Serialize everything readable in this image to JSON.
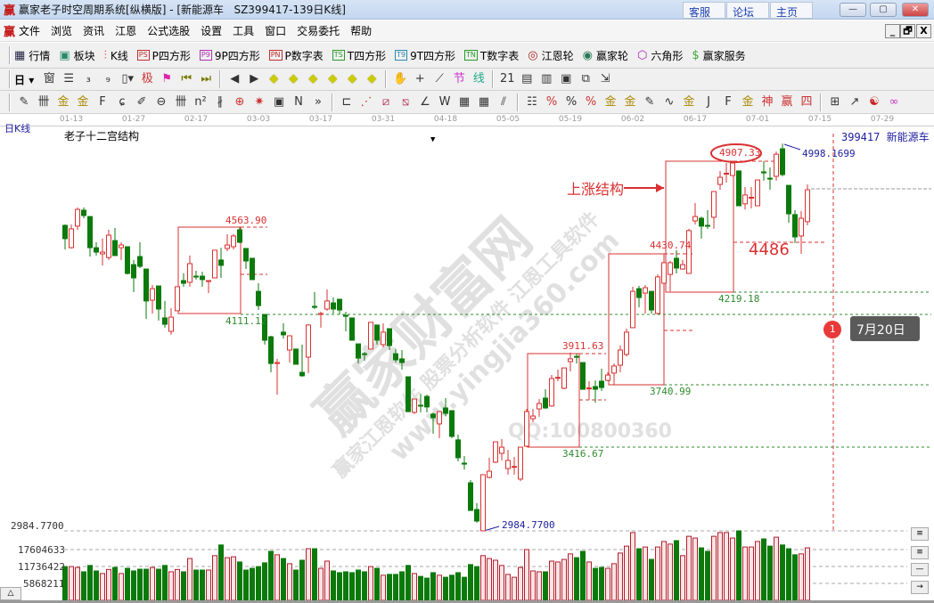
{
  "window": {
    "app_icon": "赢",
    "title": "赢家老子时空周期系统[纵横版] - [新能源车   SZ399417-139日K线]",
    "links": [
      "客服",
      "论坛",
      "主页"
    ],
    "controls": [
      "—",
      "▢",
      "✕"
    ]
  },
  "menu": {
    "app_icon": "赢",
    "items": [
      "文件",
      "浏览",
      "资讯",
      "江恩",
      "公式选股",
      "设置",
      "工具",
      "窗口",
      "交易委托",
      "帮助"
    ],
    "mdi_controls": [
      "_",
      "🗗",
      "X"
    ]
  },
  "toolbar1": [
    {
      "label": "行情",
      "icon": "table"
    },
    {
      "label": "板块",
      "icon": "blocks"
    },
    {
      "label": "K线",
      "icon": "kline"
    },
    {
      "label": "P四方形",
      "badge": "PS",
      "color": "#c03030"
    },
    {
      "label": "9P四方形",
      "badge": "P9",
      "color": "#b030b0"
    },
    {
      "label": "P数字表",
      "badge": "PN",
      "color": "#c03030"
    },
    {
      "label": "T四方形",
      "badge": "TS",
      "color": "#2a9a2a"
    },
    {
      "label": "9T四方形",
      "badge": "T9",
      "color": "#2a8ab0"
    },
    {
      "label": "T数字表",
      "badge": "TN",
      "color": "#2a9a2a"
    },
    {
      "label": "江恩轮",
      "icon": "gann-wheel"
    },
    {
      "label": "赢家轮",
      "icon": "winner-wheel"
    },
    {
      "label": "六角形",
      "icon": "hexagon"
    },
    {
      "label": "赢家服务",
      "icon": "dollar"
    }
  ],
  "toolbar2": {
    "period": "日",
    "icons": [
      "window",
      "list",
      "chart-3",
      "chart-9",
      "candle-dropdown",
      "extreme",
      "flag",
      "first",
      "last",
      "prev",
      "next",
      "diamond-left",
      "diamond-right",
      "diamond-both",
      "diamond-squeeze",
      "diamond-expand",
      "diamond-vertical",
      "hand",
      "crosshair",
      "line-tool",
      "section",
      "line-style",
      "calendar",
      "calculator",
      "document",
      "save",
      "network",
      "export"
    ]
  },
  "toolbar3": {
    "icons": [
      "pencil",
      "hash",
      "gold-grid",
      "gold-grid-2",
      "f-grid",
      "spiral",
      "fan-pencil",
      "circle-ruler",
      "hash-2",
      "n2-grid",
      "angle-lines",
      "target",
      "starburst",
      "square-target",
      "n-lines",
      "more",
      "rect-tool",
      "fan",
      "box-fan",
      "box-fan-2",
      "angle",
      "w-line",
      "grid",
      "grid-2",
      "parallel",
      "list-lines",
      "percent-slash",
      "percent",
      "percent-lines",
      "gold-coin",
      "gold-lines",
      "pencil-fan",
      "wave",
      "gold-underline",
      "j-angle",
      "f-angle",
      "gold-angle",
      "god-angle",
      "win-angle",
      "four-angle",
      "grid-yellow",
      "chart-line",
      "yin-yang",
      "infinity"
    ]
  },
  "date_axis": [
    "01-13",
    "01-27",
    "02-17",
    "03-03",
    "03-17",
    "03-31",
    "04-18",
    "05-05",
    "05-19",
    "06-02",
    "06-17",
    "07-01",
    "07-15",
    "07-29"
  ],
  "chart": {
    "kline_label": "日K线",
    "structure_label": "老子十二宫结构",
    "symbol_label": "399417 新能源车",
    "rise_label": "上涨结构",
    "level_label": "4486",
    "high_label": "4998.1699",
    "low_label": "2984.7700",
    "price_axis_label": "2984.7700",
    "boxes": [
      {
        "top": "4563.90",
        "bottom": "4111.12"
      },
      {
        "top": "3911.63",
        "bottom": "3416.67"
      },
      {
        "top": "4430.74",
        "bottom": "3740.99"
      },
      {
        "top": "4907.33",
        "bottom": "4219.18"
      }
    ],
    "marker_badge": "1",
    "marker_date": "7月20日",
    "volume_axis": [
      "17604633",
      "11736422",
      "5868211"
    ],
    "side_buttons": [
      "≡",
      "≡",
      "—",
      "→"
    ],
    "collapse_button": "△"
  },
  "watermark": {
    "brand": "赢家财富网",
    "slogan": "赢家江恩软件 股票分析软件 江恩工具软件",
    "url": "www.yingjia360.com",
    "qq": "QQ:100800360"
  },
  "colors": {
    "up": "#d93030",
    "down": "#0b7a0b",
    "support": "#2e8b2e",
    "box": "#d93030",
    "label_blue": "#2020a0"
  },
  "chart_data": {
    "type": "candlestick",
    "ohlc_format": [
      "open",
      "high",
      "low",
      "close"
    ],
    "ohlc": [
      [
        4573,
        4578,
        4448,
        4504
      ],
      [
        4457,
        4578,
        4453,
        4555
      ],
      [
        4569,
        4666,
        4550,
        4656
      ],
      [
        4652,
        4666,
        4610,
        4624
      ],
      [
        4619,
        4619,
        4411,
        4457
      ],
      [
        4457,
        4485,
        4416,
        4434
      ],
      [
        4425,
        4504,
        4365,
        4434
      ],
      [
        4406,
        4550,
        4393,
        4522
      ],
      [
        4494,
        4559,
        4416,
        4416
      ],
      [
        4457,
        4485,
        4393,
        4471
      ],
      [
        4462,
        4462,
        4318,
        4323
      ],
      [
        4369,
        4393,
        4226,
        4300
      ],
      [
        4411,
        4485,
        4351,
        4360
      ],
      [
        4346,
        4346,
        4087,
        4180
      ],
      [
        4184,
        4263,
        4115,
        4244
      ],
      [
        4258,
        4258,
        4078,
        4138
      ],
      [
        4092,
        4180,
        4041,
        4059
      ],
      [
        4022,
        4143,
        4004,
        4096
      ],
      [
        4129,
        4254,
        4129,
        4254
      ],
      [
        4286,
        4323,
        4254,
        4272
      ],
      [
        4277,
        4416,
        4254,
        4374
      ],
      [
        4309,
        4337,
        4291,
        4305
      ],
      [
        4309,
        4332,
        4254,
        4291
      ],
      [
        4281,
        4286,
        4221,
        4286
      ],
      [
        4300,
        4444,
        4300,
        4444
      ],
      [
        4393,
        4457,
        4300,
        4365
      ],
      [
        4453,
        4527,
        4439,
        4471
      ],
      [
        4462,
        4527,
        4448,
        4518
      ],
      [
        4550,
        4564,
        4481,
        4485
      ],
      [
        4453,
        4453,
        4346,
        4388
      ],
      [
        4402,
        4402,
        4291,
        4291
      ],
      [
        4230,
        4272,
        4133,
        4156
      ],
      [
        4110,
        4110,
        3953,
        3976
      ],
      [
        3994,
        3999,
        3809,
        3855
      ],
      [
        3855,
        3879,
        3693,
        3860
      ],
      [
        4018,
        4064,
        3985,
        4004
      ],
      [
        3925,
        3999,
        3860,
        3999
      ],
      [
        3930,
        3930,
        3851,
        3851
      ],
      [
        3809,
        3953,
        3786,
        3791
      ],
      [
        3888,
        4059,
        3805,
        4055
      ],
      [
        4152,
        4226,
        4138,
        4147
      ],
      [
        4110,
        4124,
        4041,
        4115
      ],
      [
        4138,
        4240,
        4129,
        4180
      ],
      [
        4170,
        4198,
        4115,
        4138
      ],
      [
        4189,
        4189,
        4110,
        4133
      ],
      [
        4105,
        4124,
        4022,
        4101
      ],
      [
        4092,
        4092,
        3976,
        3976
      ],
      [
        3957,
        3957,
        3855,
        3883
      ],
      [
        3906,
        3916,
        3869,
        3902
      ],
      [
        3930,
        4069,
        3930,
        4069
      ],
      [
        4055,
        4055,
        3953,
        3976
      ],
      [
        3953,
        4064,
        3939,
        4018
      ],
      [
        4036,
        4036,
        3925,
        3948
      ],
      [
        3906,
        3930,
        3860,
        3874
      ],
      [
        3879,
        3925,
        3823,
        3860
      ],
      [
        3786,
        3786,
        3605,
        3605
      ],
      [
        3601,
        3670,
        3592,
        3670
      ],
      [
        3638,
        3698,
        3601,
        3634
      ],
      [
        3684,
        3693,
        3601,
        3629
      ],
      [
        3592,
        3601,
        3490,
        3573
      ],
      [
        3541,
        3605,
        3467,
        3605
      ],
      [
        3624,
        3675,
        3582,
        3596
      ],
      [
        3610,
        3610,
        3467,
        3476
      ],
      [
        3458,
        3485,
        3346,
        3365
      ],
      [
        3337,
        3374,
        3304,
        3332
      ],
      [
        3235,
        3249,
        3091,
        3091
      ],
      [
        3096,
        3129,
        3027,
        3036
      ],
      [
        2985,
        3277,
        2984.77,
        3277
      ],
      [
        3263,
        3365,
        3258,
        3295
      ],
      [
        3342,
        3448,
        3337,
        3448
      ],
      [
        3388,
        3462,
        3351,
        3420
      ],
      [
        3309,
        3406,
        3277,
        3351
      ],
      [
        3318,
        3369,
        3277,
        3320
      ],
      [
        3254,
        3420,
        3244,
        3420
      ],
      [
        3425,
        3619,
        3420,
        3605
      ],
      [
        3568,
        3619,
        3550,
        3582
      ],
      [
        3619,
        3670,
        3578,
        3647
      ],
      [
        3675,
        3721,
        3619,
        3624
      ],
      [
        3634,
        3795,
        3629,
        3777
      ],
      [
        3781,
        3823,
        3763,
        3783
      ],
      [
        3726,
        3832,
        3721,
        3832
      ],
      [
        3865,
        3911.63,
        3814,
        3879
      ],
      [
        3892,
        3906,
        3855,
        3888
      ],
      [
        3860,
        3860,
        3721,
        3721
      ],
      [
        3726,
        3763,
        3666,
        3728
      ],
      [
        3735,
        3767,
        3652,
        3721
      ],
      [
        3763,
        3828,
        3712,
        3730
      ],
      [
        3767,
        3809,
        3763,
        3795
      ],
      [
        3805,
        3855,
        3744,
        3842
      ],
      [
        3846,
        3948,
        3809,
        3925
      ],
      [
        3902,
        4036,
        3892,
        4018
      ],
      [
        4041,
        4254,
        4041,
        4230
      ],
      [
        4244,
        4258,
        4147,
        4198
      ],
      [
        4221,
        4263,
        4115,
        4249
      ],
      [
        4230,
        4230,
        4115,
        4133
      ],
      [
        4115,
        4318,
        4110,
        4305
      ],
      [
        4272,
        4388,
        4230,
        4379
      ],
      [
        4318,
        4388,
        4230,
        4379
      ],
      [
        4402,
        4444,
        4323,
        4351
      ],
      [
        4346,
        4393,
        4342,
        4369
      ],
      [
        4323,
        4555,
        4323,
        4546
      ],
      [
        4596,
        4689,
        4578,
        4619
      ],
      [
        4610,
        4619,
        4504,
        4569
      ],
      [
        4573,
        4652,
        4555,
        4569
      ],
      [
        4615,
        4749,
        4555,
        4749
      ],
      [
        4786,
        4856,
        4758,
        4823
      ],
      [
        4842,
        4897,
        4795,
        4844
      ],
      [
        4832,
        4907.33,
        4832,
        4897
      ],
      [
        4856,
        4856,
        4675,
        4675
      ],
      [
        4685,
        4772,
        4656,
        4731
      ],
      [
        4717,
        4772,
        4661,
        4719
      ],
      [
        4675,
        4809,
        4675,
        4809
      ],
      [
        4851,
        4907,
        4805,
        4846
      ],
      [
        4818,
        4874,
        4758,
        4814
      ],
      [
        4828,
        4957,
        4805,
        4943
      ],
      [
        4971,
        4998.17,
        4828,
        4837
      ],
      [
        4781,
        4781,
        4587,
        4633
      ],
      [
        4629,
        4652,
        4481,
        4513
      ],
      [
        4518,
        4647,
        4425,
        4610
      ],
      [
        4592,
        4786,
        4573,
        4758
      ]
    ],
    "volume": [
      11700000,
      11700000,
      11400000,
      9900000,
      12100000,
      10200000,
      9300000,
      10700000,
      11400000,
      9300000,
      11100000,
      10200000,
      10800000,
      10800000,
      11400000,
      10800000,
      12100000,
      9900000,
      10700000,
      9900000,
      14500000,
      10500000,
      10500000,
      10500000,
      15500000,
      19200000,
      14800000,
      15100000,
      13300000,
      10500000,
      11100000,
      11700000,
      13000000,
      17000000,
      15800000,
      14500000,
      12700000,
      10500000,
      13900000,
      17900000,
      17900000,
      11100000,
      13600000,
      10200000,
      9600000,
      9900000,
      9600000,
      10500000,
      9900000,
      11700000,
      11100000,
      8700000,
      9000000,
      9000000,
      9900000,
      12100000,
      9300000,
      8300000,
      7700000,
      9600000,
      8700000,
      8000000,
      8700000,
      9600000,
      8000000,
      12400000,
      11700000,
      15500000,
      14500000,
      13900000,
      12100000,
      9000000,
      8000000,
      11400000,
      17600000,
      10200000,
      9900000,
      9900000,
      13600000,
      13300000,
      14200000,
      16100000,
      14800000,
      17000000,
      13300000,
      11100000,
      11400000,
      11100000,
      12700000,
      16400000,
      18800000,
      23500000,
      17900000,
      18500000,
      14200000,
      18500000,
      20400000,
      19500000,
      20700000,
      15500000,
      22200000,
      21600000,
      18200000,
      17000000,
      22200000,
      23500000,
      23500000,
      21600000,
      24100000,
      18500000,
      18500000,
      20400000,
      21300000,
      18800000,
      21900000,
      19200000,
      17900000,
      15800000,
      16100000,
      18200000
    ],
    "x_tick_labels": [
      "01-13",
      "01-27",
      "02-17",
      "03-03",
      "03-17",
      "03-31",
      "04-18",
      "05-05",
      "05-19",
      "06-02",
      "06-17",
      "07-01",
      "07-15",
      "07-29"
    ],
    "price_range": [
      2984.77,
      4998.17
    ],
    "grid": false
  }
}
